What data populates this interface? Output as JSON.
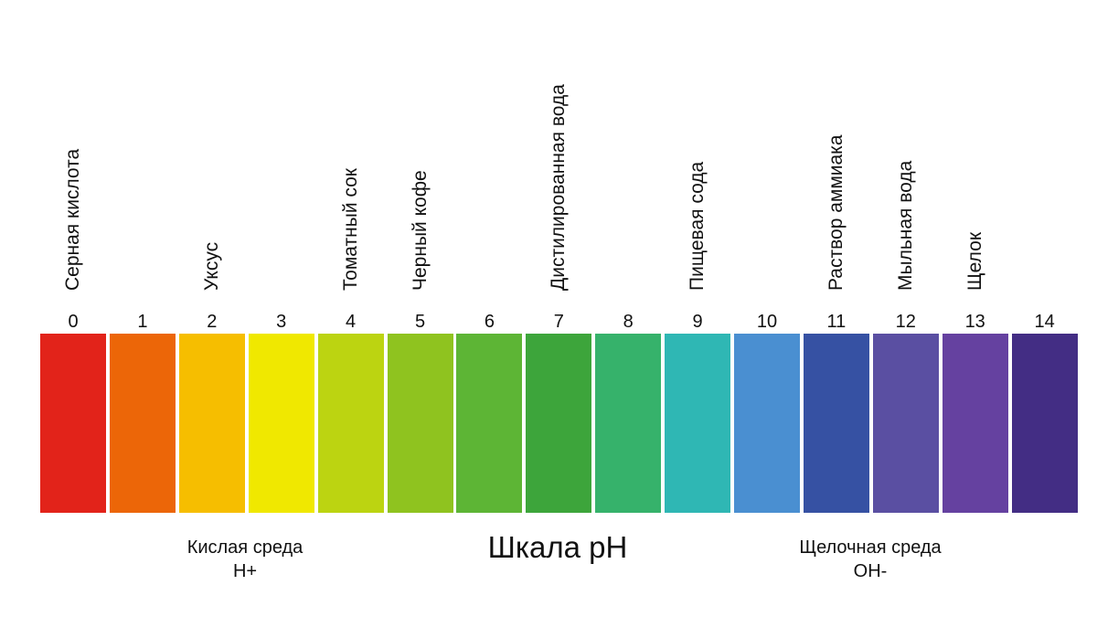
{
  "title": "Шкала pH",
  "acid": {
    "line1": "Кислая среда",
    "line2": "H+"
  },
  "alkaline": {
    "line1": "Щелочная среда",
    "line2": "OH-"
  },
  "scale": [
    {
      "ph": "0",
      "color": "#e2231a",
      "example": "Серная кислота"
    },
    {
      "ph": "1",
      "color": "#ec6608",
      "example": ""
    },
    {
      "ph": "2",
      "color": "#f6be00",
      "example": "Уксус"
    },
    {
      "ph": "3",
      "color": "#f0e800",
      "example": ""
    },
    {
      "ph": "4",
      "color": "#bcd411",
      "example": "Томатный сок"
    },
    {
      "ph": "5",
      "color": "#8fc31f",
      "example": "Черный кофе"
    },
    {
      "ph": "6",
      "color": "#5db535",
      "example": ""
    },
    {
      "ph": "7",
      "color": "#3da53b",
      "example": "Дистилированная вода"
    },
    {
      "ph": "8",
      "color": "#36b26b",
      "example": ""
    },
    {
      "ph": "9",
      "color": "#2fb7b4",
      "example": "Пищевая сода"
    },
    {
      "ph": "10",
      "color": "#4a8fd1",
      "example": ""
    },
    {
      "ph": "11",
      "color": "#3651a3",
      "example": "Раствор аммиака"
    },
    {
      "ph": "12",
      "color": "#5a4fa2",
      "example": "Мыльная вода"
    },
    {
      "ph": "13",
      "color": "#6541a0",
      "example": "Щелок"
    },
    {
      "ph": "14",
      "color": "#432d84",
      "example": ""
    }
  ]
}
